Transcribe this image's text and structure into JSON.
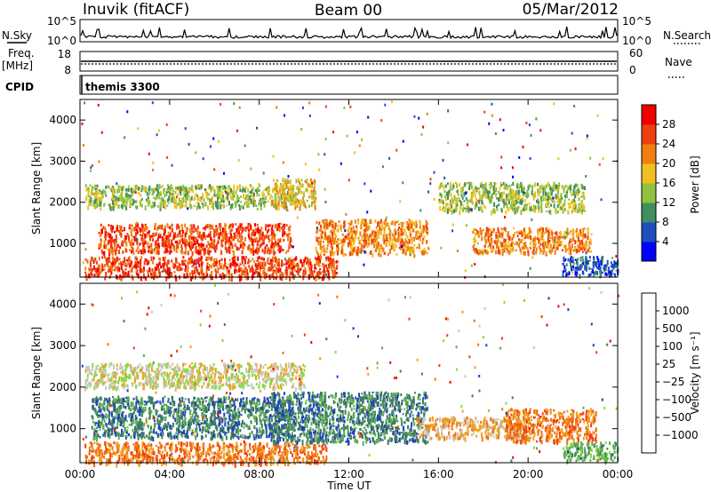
{
  "header": {
    "station": "Inuvik (fitACF)",
    "beam": "Beam 00",
    "date": "05/Mar/2012"
  },
  "top_panels": {
    "nsky_label": "N.Sky",
    "nsky_ticks": [
      "10^5",
      "10^0"
    ],
    "nsearch_label": "N.Search",
    "nsearch_ticks": [
      "10^5",
      "10^0"
    ],
    "freq_label": "Freq.",
    "freq_unit": "[MHz]",
    "freq_ticks": [
      "18",
      "8"
    ],
    "nave_label": "Nave",
    "nave_ticks": [
      "60",
      "0"
    ],
    "cpid_label": "CPID",
    "cpid_value": "themis 3300"
  },
  "chart_data": [
    {
      "type": "heatmap",
      "name": "power",
      "ylabel": "Slant Range [km]",
      "xlabel": "",
      "xlim": [
        0,
        24
      ],
      "ylim": [
        180,
        4500
      ],
      "y_ticks": [
        "1000",
        "2000",
        "3000",
        "4000"
      ],
      "y_tick_values": [
        1000,
        2000,
        3000,
        4000
      ],
      "colorbar": {
        "label": "Power [dB]",
        "tick_labels": [
          "4",
          "8",
          "12",
          "16",
          "20",
          "24",
          "28"
        ],
        "colors": [
          "#0000ff",
          "#1f4fbf",
          "#3f8f5f",
          "#8fc23f",
          "#f0c020",
          "#f07f10",
          "#f04010",
          "#f20000"
        ]
      },
      "regions": [
        {
          "t0": 0.2,
          "t1": 11.5,
          "r0": 180,
          "r1": 700,
          "level": 6
        },
        {
          "t0": 0.8,
          "t1": 9.4,
          "r0": 800,
          "r1": 1500,
          "level": 6
        },
        {
          "t0": 10.5,
          "t1": 15.5,
          "r0": 750,
          "r1": 1600,
          "level": 5
        },
        {
          "t0": 17.5,
          "t1": 22.8,
          "r0": 800,
          "r1": 1400,
          "level": 5
        },
        {
          "t0": 0.2,
          "t1": 9.5,
          "r0": 1900,
          "r1": 2450,
          "level": 3
        },
        {
          "t0": 8.5,
          "t1": 10.5,
          "r0": 1900,
          "r1": 2600,
          "level": 4
        },
        {
          "t0": 16,
          "t1": 22.5,
          "r0": 1800,
          "r1": 2500,
          "level": 3
        },
        {
          "t0": 21.5,
          "t1": 24,
          "r0": 250,
          "r1": 700,
          "level": 1
        }
      ]
    },
    {
      "type": "heatmap",
      "name": "velocity",
      "ylabel": "Slant Range [km]",
      "xlabel": "Time UT",
      "xlim": [
        0,
        24
      ],
      "ylim": [
        180,
        4500
      ],
      "y_ticks": [
        "1000",
        "2000",
        "3000",
        "4000"
      ],
      "y_tick_values": [
        1000,
        2000,
        3000,
        4000
      ],
      "x_ticks": [
        "00:00",
        "04:00",
        "08:00",
        "12:00",
        "16:00",
        "20:00",
        "00:00"
      ],
      "colorbar": {
        "label": "Velocity [m s⁻¹]",
        "tick_labels": [
          "1000",
          "500",
          "100",
          "25",
          "−25",
          "−100",
          "−500",
          "−1000"
        ],
        "colors": [
          "#1f3fbf",
          "#3f7f5f",
          "#5faf4f",
          "#7fdf3f",
          "#c8c8c0",
          "#f0a020",
          "#f07010",
          "#f04010",
          "#f00000"
        ]
      },
      "regions": [
        {
          "t0": 0.2,
          "t1": 11,
          "r0": 180,
          "r1": 700,
          "level": 6
        },
        {
          "t0": 0.5,
          "t1": 9.5,
          "r0": 800,
          "r1": 1800,
          "level": 1
        },
        {
          "t0": 8.5,
          "t1": 15.5,
          "r0": 700,
          "r1": 1900,
          "level": 1
        },
        {
          "t0": 15,
          "t1": 20,
          "r0": 800,
          "r1": 1300,
          "level": 5
        },
        {
          "t0": 19,
          "t1": 23,
          "r0": 700,
          "r1": 1500,
          "level": 6
        },
        {
          "t0": 0.2,
          "t1": 10,
          "r0": 2000,
          "r1": 2600,
          "level": 4
        },
        {
          "t0": 21.5,
          "t1": 24,
          "r0": 250,
          "r1": 700,
          "level": 2
        }
      ]
    }
  ]
}
